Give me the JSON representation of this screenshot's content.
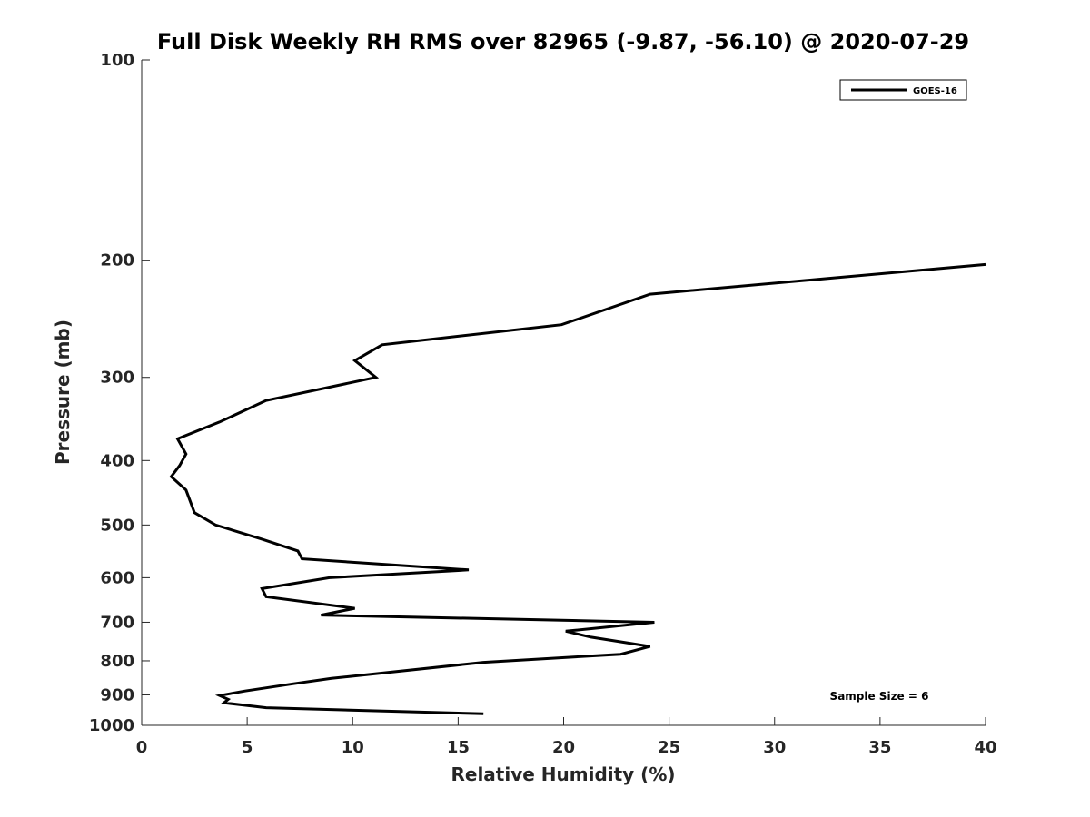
{
  "chart_data": {
    "type": "line",
    "title": "Full Disk Weekly RH RMS over 82965 (-9.87, -56.10) @ 2020-07-29",
    "xlabel": "Relative Humidity (%)",
    "ylabel": "Pressure (mb)",
    "xlim": [
      0,
      40
    ],
    "ylim": [
      100,
      1000
    ],
    "yscale": "log",
    "yreversed": true,
    "grid": false,
    "legend_position": "top-right",
    "x_ticks": [
      0,
      5,
      10,
      15,
      20,
      25,
      30,
      35,
      40
    ],
    "y_ticks": [
      100,
      200,
      300,
      400,
      500,
      600,
      700,
      800,
      900,
      1000
    ],
    "series": [
      {
        "name": "GOES-16",
        "color": "#000000",
        "points": [
          {
            "x": 40.0,
            "y": 203
          },
          {
            "x": 24.1,
            "y": 225
          },
          {
            "x": 19.9,
            "y": 250
          },
          {
            "x": 11.4,
            "y": 268
          },
          {
            "x": 10.1,
            "y": 283
          },
          {
            "x": 11.1,
            "y": 300
          },
          {
            "x": 5.9,
            "y": 325
          },
          {
            "x": 3.7,
            "y": 350
          },
          {
            "x": 1.7,
            "y": 371
          },
          {
            "x": 2.1,
            "y": 391
          },
          {
            "x": 1.8,
            "y": 407
          },
          {
            "x": 1.4,
            "y": 423
          },
          {
            "x": 2.1,
            "y": 443
          },
          {
            "x": 2.5,
            "y": 479
          },
          {
            "x": 3.5,
            "y": 500
          },
          {
            "x": 5.7,
            "y": 525
          },
          {
            "x": 7.4,
            "y": 547
          },
          {
            "x": 7.6,
            "y": 562
          },
          {
            "x": 15.5,
            "y": 584
          },
          {
            "x": 8.9,
            "y": 600
          },
          {
            "x": 5.7,
            "y": 623
          },
          {
            "x": 5.9,
            "y": 641
          },
          {
            "x": 10.1,
            "y": 667
          },
          {
            "x": 8.5,
            "y": 683
          },
          {
            "x": 24.3,
            "y": 700
          },
          {
            "x": 20.1,
            "y": 722
          },
          {
            "x": 21.3,
            "y": 737
          },
          {
            "x": 24.1,
            "y": 761
          },
          {
            "x": 22.7,
            "y": 782
          },
          {
            "x": 16.2,
            "y": 804
          },
          {
            "x": 9.0,
            "y": 850
          },
          {
            "x": 7.2,
            "y": 866
          },
          {
            "x": 4.9,
            "y": 888
          },
          {
            "x": 3.7,
            "y": 902
          },
          {
            "x": 4.1,
            "y": 914
          },
          {
            "x": 3.9,
            "y": 925
          },
          {
            "x": 5.9,
            "y": 941
          },
          {
            "x": 16.2,
            "y": 961
          }
        ]
      }
    ],
    "annotations": [
      {
        "text": "Sample Size = 6"
      }
    ]
  }
}
